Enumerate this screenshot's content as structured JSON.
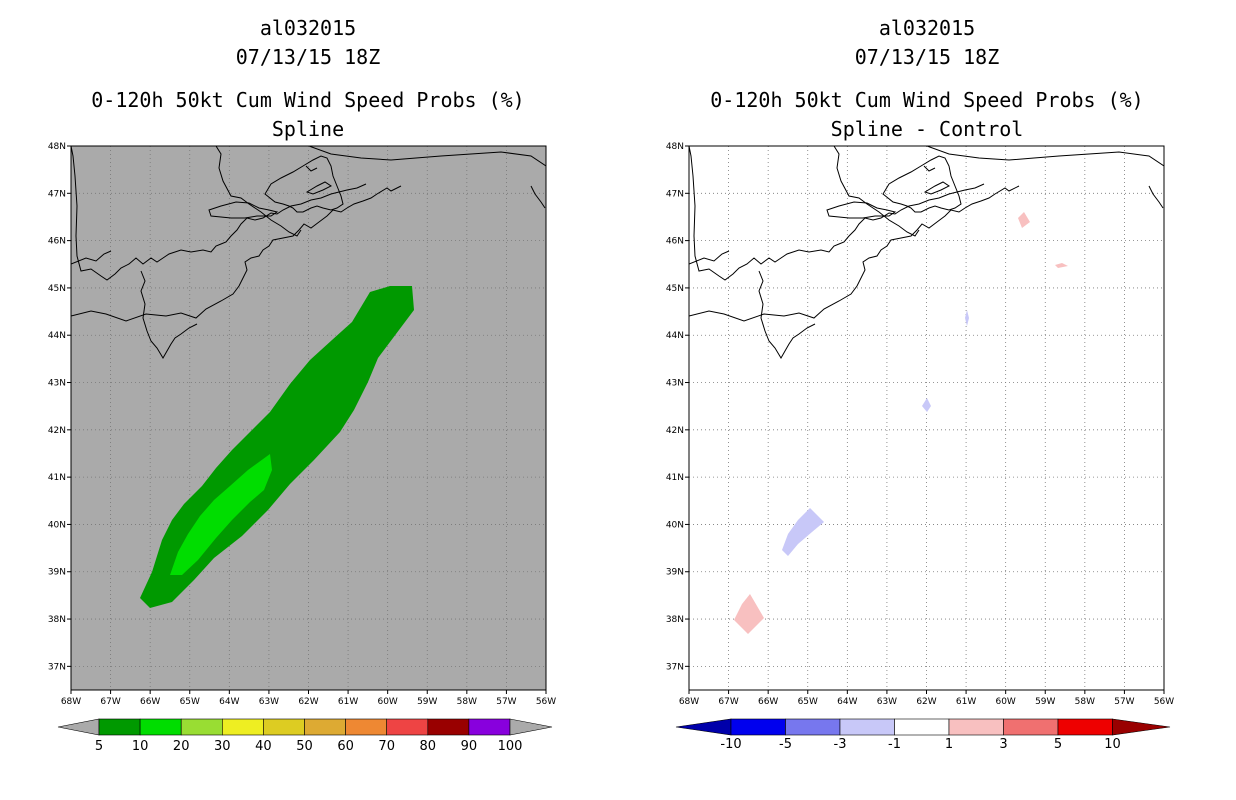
{
  "left": {
    "storm_id": "al032015",
    "datetime": "07/13/15 18Z",
    "product": "0-120h 50kt Cum Wind Speed Probs (%)",
    "subtitle": "Spline",
    "colorbar": {
      "labels": [
        "5",
        "10",
        "20",
        "30",
        "40",
        "50",
        "60",
        "70",
        "80",
        "90",
        "100"
      ],
      "colors": [
        "#009900",
        "#00dd00",
        "#99dd33",
        "#eeee22",
        "#ddcc22",
        "#ddaa33",
        "#ee8833",
        "#ee4444",
        "#990000",
        "#8800dd"
      ]
    }
  },
  "right": {
    "storm_id": "al032015",
    "datetime": "07/13/15 18Z",
    "product": "0-120h 50kt Cum Wind Speed Probs (%)",
    "subtitle": "Spline - Control",
    "colorbar": {
      "labels": [
        "-10",
        "-5",
        "-3",
        "-1",
        "1",
        "3",
        "5",
        "10"
      ],
      "colors": [
        "#0000aa",
        "#0000ee",
        "#7777ee",
        "#c8c8f8",
        "#ffffff",
        "#f8c0c0",
        "#f07070",
        "#ee0000",
        "#990000"
      ]
    }
  },
  "map": {
    "lat_labels": [
      "48N",
      "47N",
      "46N",
      "45N",
      "44N",
      "43N",
      "42N",
      "41N",
      "40N",
      "39N",
      "38N",
      "37N"
    ],
    "lon_labels": [
      "68W",
      "67W",
      "66W",
      "65W",
      "64W",
      "63W",
      "62W",
      "61W",
      "60W",
      "59W",
      "58W",
      "57W",
      "56W"
    ],
    "lat_range": [
      36.5,
      48
    ],
    "lon_range": [
      -68,
      -56
    ],
    "ocean_color_left": "#aaaaaa",
    "ocean_color_right": "#ffffff",
    "grid": "dotted"
  }
}
